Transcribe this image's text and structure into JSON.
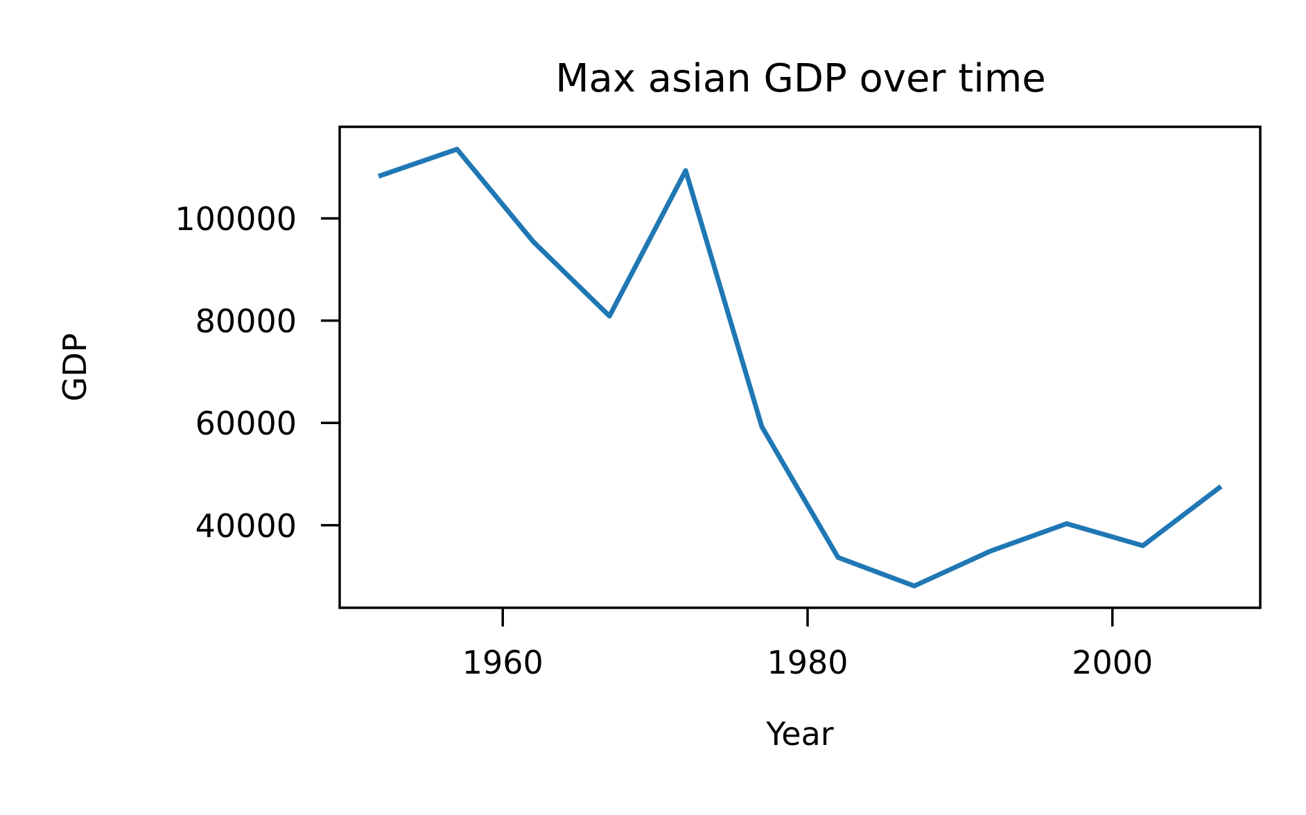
{
  "chart_data": {
    "type": "line",
    "title": "Max asian GDP over time",
    "xlabel": "Year",
    "ylabel": "GDP",
    "xlim": [
      1949.3,
      2009.7
    ],
    "ylim": [
      23850,
      117900
    ],
    "x_ticks": [
      1960,
      1980,
      2000
    ],
    "y_ticks": [
      40000,
      60000,
      80000,
      100000
    ],
    "grid": false,
    "series": [
      {
        "color": "#1f77b4",
        "x": [
          1952,
          1957,
          1962,
          1967,
          1972,
          1977,
          1982,
          1987,
          1992,
          1997,
          2002,
          2007
        ],
        "y": [
          108383,
          113523,
          95458,
          80895,
          109348,
          59265,
          33693,
          28118,
          34933,
          40301,
          35995,
          47307
        ]
      }
    ]
  }
}
